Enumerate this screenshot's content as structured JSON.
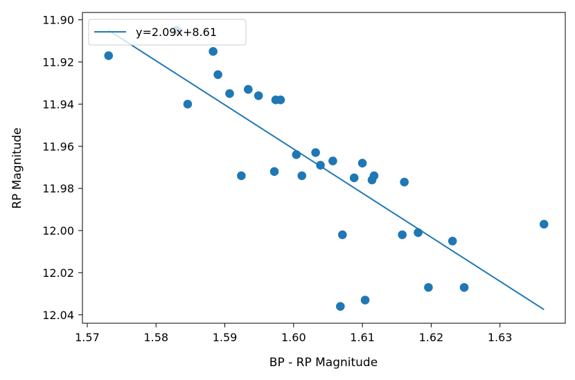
{
  "chart_data": {
    "type": "scatter",
    "title": "",
    "xlabel": "BP - RP Magnitude",
    "ylabel": "RP Magnitude",
    "xlim": [
      1.5693,
      1.6395
    ],
    "ylim": [
      12.044,
      11.8965
    ],
    "y_inverted": true,
    "grid": false,
    "legend_position": "top-left",
    "xticks": [
      1.57,
      1.58,
      1.59,
      1.6,
      1.61,
      1.62,
      1.63
    ],
    "xtick_labels": [
      "1.57",
      "1.58",
      "1.59",
      "1.60",
      "1.61",
      "1.62",
      "1.63"
    ],
    "yticks": [
      11.9,
      11.92,
      11.94,
      11.96,
      11.98,
      12.0,
      12.02,
      12.04
    ],
    "ytick_labels": [
      "11.90",
      "11.92",
      "11.94",
      "11.96",
      "11.98",
      "12.00",
      "12.02",
      "12.04"
    ],
    "color": "#1f77b4",
    "series": [
      {
        "type": "scatter",
        "x": [
          1.5731,
          1.583,
          1.5846,
          1.5883,
          1.589,
          1.5907,
          1.5924,
          1.5934,
          1.5949,
          1.5972,
          1.5974,
          1.5981,
          1.6004,
          1.6012,
          1.6032,
          1.6039,
          1.6057,
          1.6068,
          1.6071,
          1.6088,
          1.61,
          1.6104,
          1.6114,
          1.6117,
          1.6158,
          1.6161,
          1.6181,
          1.6196,
          1.6231,
          1.6248,
          1.6364
        ],
        "y": [
          11.917,
          11.905,
          11.94,
          11.915,
          11.926,
          11.935,
          11.974,
          11.933,
          11.936,
          11.972,
          11.938,
          11.938,
          11.964,
          11.974,
          11.963,
          11.969,
          11.967,
          12.036,
          12.002,
          11.975,
          11.968,
          12.033,
          11.976,
          11.974,
          12.002,
          11.977,
          12.001,
          12.027,
          12.005,
          12.027,
          11.997
        ]
      },
      {
        "type": "line",
        "name": "y=2.09x+8.61",
        "x": [
          1.5731,
          1.6364
        ],
        "y": [
          11.905,
          12.0375
        ]
      }
    ]
  }
}
